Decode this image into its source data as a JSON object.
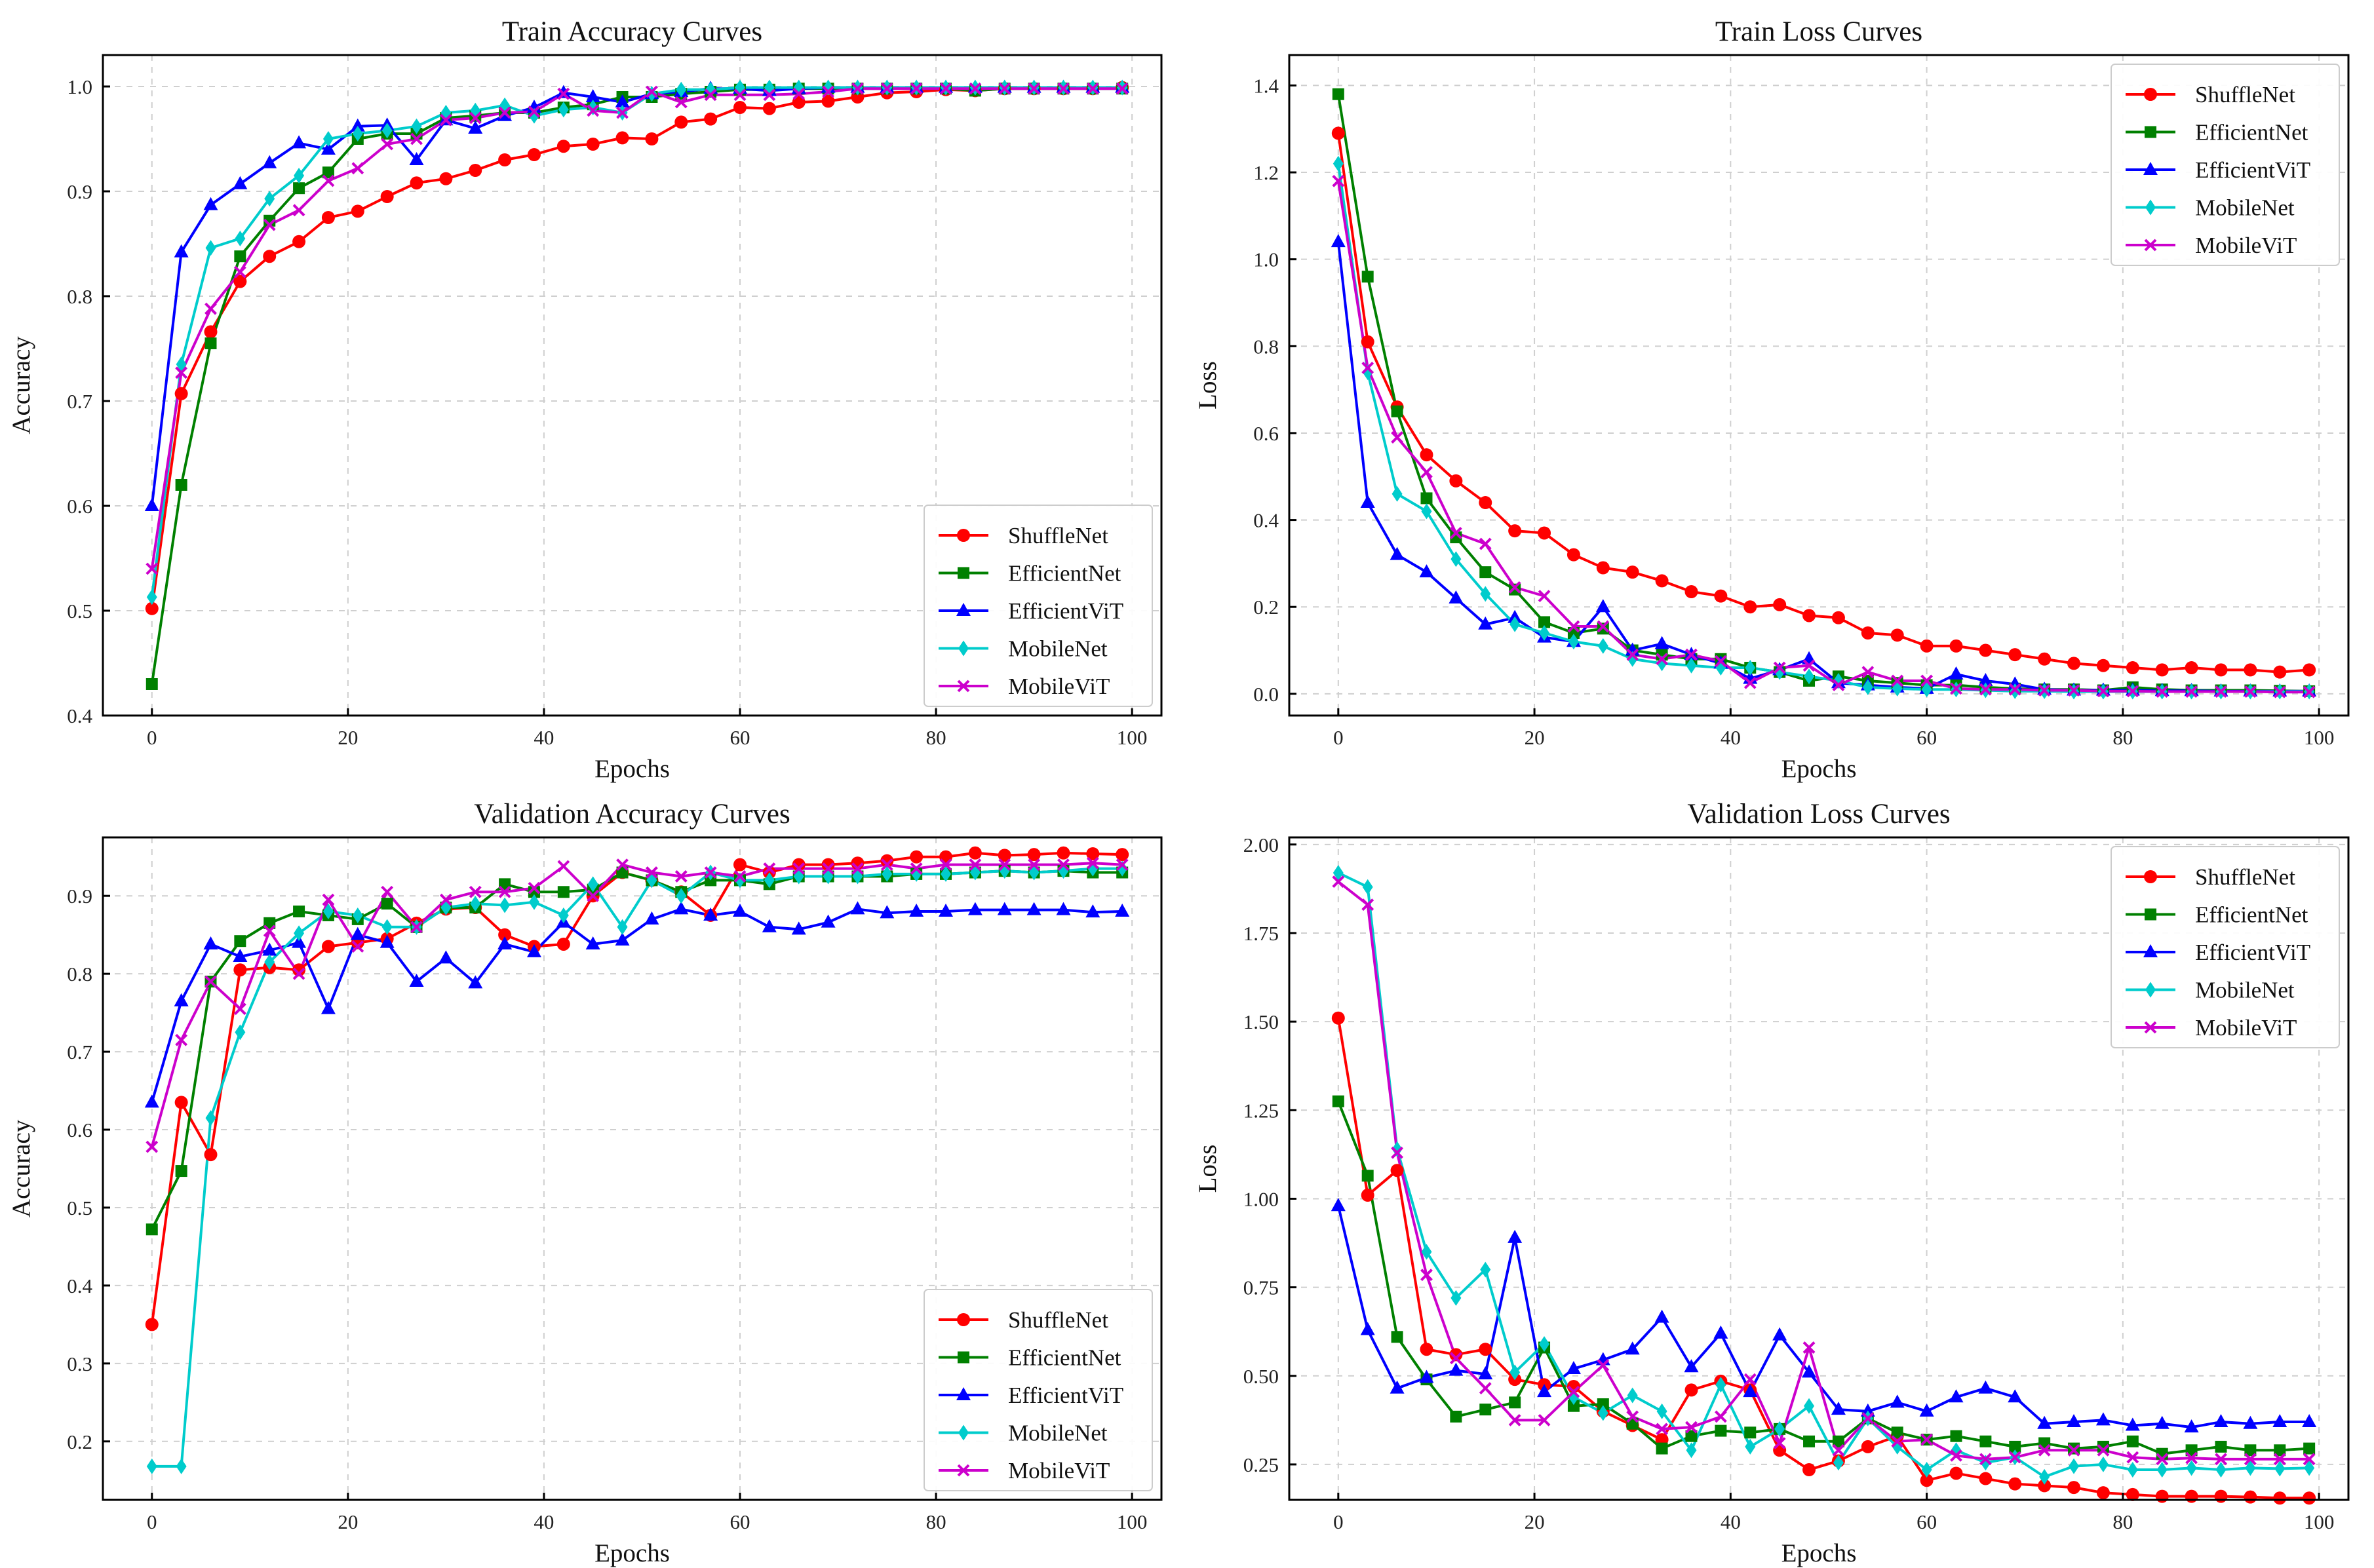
{
  "chart_data": [
    {
      "type": "line",
      "title": "Train Accuracy Curves",
      "xlabel": "Epochs",
      "ylabel": "Accuracy",
      "xlim": [
        -5,
        103
      ],
      "ylim": [
        0.4,
        1.03
      ],
      "xticks": [
        0,
        20,
        40,
        60,
        80,
        100
      ],
      "yticks": [
        0.4,
        0.5,
        0.6,
        0.7,
        0.8,
        0.9,
        1.0
      ],
      "ytick_labels": [
        "0.4",
        "0.5",
        "0.6",
        "0.7",
        "0.8",
        "0.9",
        "1.0"
      ],
      "legend_position": "lower-right",
      "x": [
        0,
        3,
        6,
        9,
        12,
        15,
        18,
        21,
        24,
        27,
        30,
        33,
        36,
        39,
        42,
        45,
        48,
        51,
        54,
        57,
        60,
        63,
        66,
        69,
        72,
        75,
        78,
        81,
        84,
        87,
        90,
        93,
        96,
        99
      ],
      "series": [
        {
          "name": "ShuffleNet",
          "color": "#ff0000",
          "marker": "circle",
          "values": [
            0.502,
            0.707,
            0.766,
            0.814,
            0.838,
            0.852,
            0.875,
            0.881,
            0.895,
            0.908,
            0.912,
            0.92,
            0.93,
            0.935,
            0.943,
            0.945,
            0.951,
            0.95,
            0.966,
            0.969,
            0.98,
            0.979,
            0.985,
            0.986,
            0.99,
            0.994,
            0.995,
            0.997,
            0.996,
            0.998,
            0.998,
            0.998,
            0.998,
            0.999
          ]
        },
        {
          "name": "EfficientNet",
          "color": "#008000",
          "marker": "square",
          "values": [
            0.43,
            0.62,
            0.755,
            0.838,
            0.872,
            0.903,
            0.918,
            0.95,
            0.955,
            0.955,
            0.97,
            0.972,
            0.975,
            0.975,
            0.98,
            0.983,
            0.99,
            0.99,
            0.993,
            0.995,
            0.997,
            0.997,
            0.998,
            0.998,
            0.998,
            0.998,
            0.998,
            0.998,
            0.996,
            0.998,
            0.998,
            0.998,
            0.998,
            0.998
          ]
        },
        {
          "name": "EfficientViT",
          "color": "#0000ff",
          "marker": "triangle",
          "values": [
            0.6,
            0.842,
            0.887,
            0.907,
            0.927,
            0.946,
            0.94,
            0.962,
            0.963,
            0.93,
            0.968,
            0.96,
            0.972,
            0.98,
            0.994,
            0.99,
            0.985,
            0.993,
            0.995,
            0.998,
            0.998,
            0.996,
            0.998,
            0.999,
            0.999,
            0.999,
            0.999,
            0.999,
            0.999,
            0.999,
            0.999,
            0.999,
            0.999,
            0.999
          ]
        },
        {
          "name": "MobileNet",
          "color": "#00cccc",
          "marker": "diamond",
          "values": [
            0.513,
            0.735,
            0.846,
            0.855,
            0.893,
            0.915,
            0.95,
            0.955,
            0.958,
            0.962,
            0.975,
            0.977,
            0.982,
            0.972,
            0.978,
            0.98,
            0.975,
            0.993,
            0.997,
            0.997,
            0.999,
            0.999,
            0.999,
            0.999,
            0.999,
            0.999,
            0.999,
            0.999,
            0.999,
            0.999,
            0.999,
            0.999,
            0.999,
            0.999
          ]
        },
        {
          "name": "MobileViT",
          "color": "#cc00cc",
          "marker": "x",
          "values": [
            0.54,
            0.727,
            0.788,
            0.823,
            0.868,
            0.882,
            0.91,
            0.922,
            0.945,
            0.95,
            0.968,
            0.97,
            0.975,
            0.976,
            0.993,
            0.977,
            0.975,
            0.995,
            0.985,
            0.992,
            0.992,
            0.992,
            0.993,
            0.995,
            0.998,
            0.998,
            0.998,
            0.998,
            0.998,
            0.998,
            0.998,
            0.998,
            0.998,
            0.998
          ]
        }
      ]
    },
    {
      "type": "line",
      "title": "Train Loss Curves",
      "xlabel": "Epochs",
      "ylabel": "Loss",
      "xlim": [
        -5,
        103
      ],
      "ylim": [
        -0.05,
        1.47
      ],
      "xticks": [
        0,
        20,
        40,
        60,
        80,
        100
      ],
      "yticks": [
        0,
        0.2,
        0.4,
        0.6,
        0.8,
        1.0,
        1.2,
        1.4
      ],
      "ytick_labels": [
        "0.0",
        "0.2",
        "0.4",
        "0.6",
        "0.8",
        "1.0",
        "1.2",
        "1.4"
      ],
      "legend_position": "upper-right",
      "x": [
        0,
        3,
        6,
        9,
        12,
        15,
        18,
        21,
        24,
        27,
        30,
        33,
        36,
        39,
        42,
        45,
        48,
        51,
        54,
        57,
        60,
        63,
        66,
        69,
        72,
        75,
        78,
        81,
        84,
        87,
        90,
        93,
        96,
        99
      ],
      "series": [
        {
          "name": "ShuffleNet",
          "color": "#ff0000",
          "marker": "circle",
          "values": [
            1.29,
            0.81,
            0.66,
            0.55,
            0.49,
            0.44,
            0.375,
            0.37,
            0.32,
            0.29,
            0.28,
            0.26,
            0.235,
            0.225,
            0.2,
            0.205,
            0.18,
            0.175,
            0.14,
            0.135,
            0.11,
            0.11,
            0.1,
            0.09,
            0.08,
            0.07,
            0.065,
            0.06,
            0.055,
            0.06,
            0.055,
            0.055,
            0.05,
            0.055
          ]
        },
        {
          "name": "EfficientNet",
          "color": "#008000",
          "marker": "square",
          "values": [
            1.38,
            0.96,
            0.65,
            0.45,
            0.36,
            0.28,
            0.24,
            0.165,
            0.14,
            0.15,
            0.1,
            0.09,
            0.08,
            0.08,
            0.06,
            0.05,
            0.03,
            0.04,
            0.03,
            0.025,
            0.02,
            0.02,
            0.015,
            0.012,
            0.01,
            0.01,
            0.008,
            0.015,
            0.01,
            0.008,
            0.008,
            0.008,
            0.007,
            0.006
          ]
        },
        {
          "name": "EfficientViT",
          "color": "#0000ff",
          "marker": "triangle",
          "values": [
            1.04,
            0.44,
            0.32,
            0.28,
            0.22,
            0.16,
            0.175,
            0.13,
            0.12,
            0.2,
            0.1,
            0.115,
            0.09,
            0.07,
            0.035,
            0.055,
            0.08,
            0.025,
            0.02,
            0.015,
            0.012,
            0.045,
            0.03,
            0.022,
            0.01,
            0.008,
            0.008,
            0.008,
            0.007,
            0.007,
            0.006,
            0.006,
            0.006,
            0.006
          ]
        },
        {
          "name": "MobileNet",
          "color": "#00cccc",
          "marker": "diamond",
          "values": [
            1.22,
            0.74,
            0.46,
            0.42,
            0.31,
            0.23,
            0.16,
            0.14,
            0.12,
            0.11,
            0.08,
            0.07,
            0.065,
            0.06,
            0.06,
            0.05,
            0.04,
            0.03,
            0.015,
            0.012,
            0.01,
            0.01,
            0.008,
            0.006,
            0.006,
            0.005,
            0.005,
            0.005,
            0.005,
            0.005,
            0.005,
            0.005,
            0.005,
            0.005
          ]
        },
        {
          "name": "MobileViT",
          "color": "#cc00cc",
          "marker": "x",
          "values": [
            1.18,
            0.75,
            0.59,
            0.51,
            0.37,
            0.345,
            0.245,
            0.225,
            0.155,
            0.155,
            0.09,
            0.08,
            0.09,
            0.075,
            0.025,
            0.06,
            0.065,
            0.02,
            0.05,
            0.03,
            0.03,
            0.012,
            0.01,
            0.01,
            0.008,
            0.008,
            0.006,
            0.006,
            0.005,
            0.005,
            0.005,
            0.005,
            0.004,
            0.004
          ]
        }
      ]
    },
    {
      "type": "line",
      "title": "Validation Accuracy Curves",
      "xlabel": "Epochs",
      "ylabel": "Accuracy",
      "xlim": [
        -5,
        103
      ],
      "ylim": [
        0.125,
        0.975
      ],
      "xticks": [
        0,
        20,
        40,
        60,
        80,
        100
      ],
      "yticks": [
        0.2,
        0.3,
        0.4,
        0.5,
        0.6,
        0.7,
        0.8,
        0.9
      ],
      "ytick_labels": [
        "0.2",
        "0.3",
        "0.4",
        "0.5",
        "0.6",
        "0.7",
        "0.8",
        "0.9"
      ],
      "legend_position": "lower-right",
      "x": [
        0,
        3,
        6,
        9,
        12,
        15,
        18,
        21,
        24,
        27,
        30,
        33,
        36,
        39,
        42,
        45,
        48,
        51,
        54,
        57,
        60,
        63,
        66,
        69,
        72,
        75,
        78,
        81,
        84,
        87,
        90,
        93,
        96,
        99
      ],
      "series": [
        {
          "name": "ShuffleNet",
          "color": "#ff0000",
          "marker": "circle",
          "values": [
            0.35,
            0.635,
            0.568,
            0.805,
            0.808,
            0.805,
            0.835,
            0.84,
            0.845,
            0.865,
            0.883,
            0.885,
            0.85,
            0.835,
            0.838,
            0.9,
            0.93,
            0.92,
            0.905,
            0.875,
            0.94,
            0.93,
            0.94,
            0.94,
            0.942,
            0.945,
            0.95,
            0.95,
            0.955,
            0.952,
            0.953,
            0.955,
            0.954,
            0.953
          ]
        },
        {
          "name": "EfficientNet",
          "color": "#008000",
          "marker": "square",
          "values": [
            0.472,
            0.547,
            0.79,
            0.842,
            0.865,
            0.88,
            0.875,
            0.87,
            0.89,
            0.86,
            0.885,
            0.885,
            0.915,
            0.905,
            0.905,
            0.908,
            0.93,
            0.92,
            0.905,
            0.92,
            0.92,
            0.915,
            0.925,
            0.925,
            0.925,
            0.925,
            0.928,
            0.928,
            0.93,
            0.932,
            0.93,
            0.932,
            0.93,
            0.93
          ]
        },
        {
          "name": "EfficientViT",
          "color": "#0000ff",
          "marker": "triangle",
          "values": [
            0.635,
            0.765,
            0.838,
            0.822,
            0.83,
            0.84,
            0.755,
            0.85,
            0.84,
            0.79,
            0.82,
            0.788,
            0.838,
            0.828,
            0.866,
            0.838,
            0.843,
            0.87,
            0.883,
            0.875,
            0.88,
            0.86,
            0.857,
            0.866,
            0.883,
            0.878,
            0.88,
            0.88,
            0.882,
            0.882,
            0.882,
            0.882,
            0.879,
            0.88
          ]
        },
        {
          "name": "MobileNet",
          "color": "#00cccc",
          "marker": "diamond",
          "values": [
            0.168,
            0.168,
            0.615,
            0.725,
            0.815,
            0.852,
            0.88,
            0.875,
            0.86,
            0.86,
            0.885,
            0.89,
            0.888,
            0.892,
            0.875,
            0.915,
            0.86,
            0.92,
            0.9,
            0.93,
            0.92,
            0.92,
            0.925,
            0.925,
            0.925,
            0.928,
            0.928,
            0.928,
            0.93,
            0.932,
            0.93,
            0.932,
            0.935,
            0.935
          ]
        },
        {
          "name": "MobileViT",
          "color": "#cc00cc",
          "marker": "x",
          "values": [
            0.578,
            0.715,
            0.79,
            0.755,
            0.855,
            0.8,
            0.895,
            0.835,
            0.905,
            0.86,
            0.895,
            0.905,
            0.905,
            0.91,
            0.938,
            0.9,
            0.94,
            0.93,
            0.925,
            0.93,
            0.925,
            0.935,
            0.935,
            0.935,
            0.935,
            0.94,
            0.935,
            0.94,
            0.94,
            0.94,
            0.94,
            0.94,
            0.942,
            0.94
          ]
        }
      ]
    },
    {
      "type": "line",
      "title": "Validation Loss Curves",
      "xlabel": "Epochs",
      "ylabel": "Loss",
      "xlim": [
        -5,
        103
      ],
      "ylim": [
        0.15,
        2.02
      ],
      "xticks": [
        0,
        20,
        40,
        60,
        80,
        100
      ],
      "yticks": [
        0.25,
        0.5,
        0.75,
        1.0,
        1.25,
        1.5,
        1.75,
        2.0
      ],
      "ytick_labels": [
        "0.25",
        "0.50",
        "0.75",
        "1.00",
        "1.25",
        "1.50",
        "1.75",
        "2.00"
      ],
      "legend_position": "upper-right",
      "x": [
        0,
        3,
        6,
        9,
        12,
        15,
        18,
        21,
        24,
        27,
        30,
        33,
        36,
        39,
        42,
        45,
        48,
        51,
        54,
        57,
        60,
        63,
        66,
        69,
        72,
        75,
        78,
        81,
        84,
        87,
        90,
        93,
        96,
        99
      ],
      "series": [
        {
          "name": "ShuffleNet",
          "color": "#ff0000",
          "marker": "circle",
          "values": [
            1.51,
            1.01,
            1.08,
            0.575,
            0.56,
            0.575,
            0.49,
            0.475,
            0.47,
            0.4,
            0.36,
            0.32,
            0.46,
            0.485,
            0.46,
            0.29,
            0.235,
            0.26,
            0.3,
            0.33,
            0.205,
            0.225,
            0.21,
            0.195,
            0.19,
            0.185,
            0.17,
            0.165,
            0.16,
            0.16,
            0.16,
            0.158,
            0.155,
            0.155
          ]
        },
        {
          "name": "EfficientNet",
          "color": "#008000",
          "marker": "square",
          "values": [
            1.275,
            1.065,
            0.61,
            0.49,
            0.385,
            0.405,
            0.425,
            0.58,
            0.415,
            0.42,
            0.365,
            0.295,
            0.33,
            0.345,
            0.34,
            0.35,
            0.315,
            0.315,
            0.38,
            0.34,
            0.32,
            0.33,
            0.315,
            0.3,
            0.31,
            0.295,
            0.3,
            0.315,
            0.28,
            0.29,
            0.3,
            0.29,
            0.29,
            0.295
          ]
        },
        {
          "name": "EfficientViT",
          "color": "#0000ff",
          "marker": "triangle",
          "values": [
            0.98,
            0.63,
            0.465,
            0.495,
            0.515,
            0.505,
            0.89,
            0.455,
            0.52,
            0.545,
            0.575,
            0.665,
            0.525,
            0.62,
            0.455,
            0.615,
            0.51,
            0.405,
            0.4,
            0.425,
            0.4,
            0.44,
            0.465,
            0.44,
            0.365,
            0.37,
            0.375,
            0.36,
            0.365,
            0.355,
            0.37,
            0.365,
            0.37,
            0.37
          ]
        },
        {
          "name": "MobileNet",
          "color": "#00cccc",
          "marker": "diamond",
          "values": [
            1.92,
            1.88,
            1.14,
            0.85,
            0.72,
            0.8,
            0.51,
            0.59,
            0.44,
            0.395,
            0.445,
            0.4,
            0.29,
            0.475,
            0.3,
            0.35,
            0.415,
            0.255,
            0.38,
            0.3,
            0.235,
            0.29,
            0.255,
            0.27,
            0.215,
            0.245,
            0.25,
            0.235,
            0.235,
            0.24,
            0.235,
            0.24,
            0.238,
            0.24
          ]
        },
        {
          "name": "MobileViT",
          "color": "#cc00cc",
          "marker": "x",
          "values": [
            1.895,
            1.83,
            1.13,
            0.785,
            0.55,
            0.465,
            0.375,
            0.375,
            0.455,
            0.53,
            0.385,
            0.35,
            0.355,
            0.385,
            0.49,
            0.31,
            0.58,
            0.29,
            0.38,
            0.315,
            0.32,
            0.275,
            0.265,
            0.27,
            0.29,
            0.29,
            0.29,
            0.27,
            0.265,
            0.268,
            0.265,
            0.265,
            0.265,
            0.265
          ]
        }
      ]
    }
  ]
}
